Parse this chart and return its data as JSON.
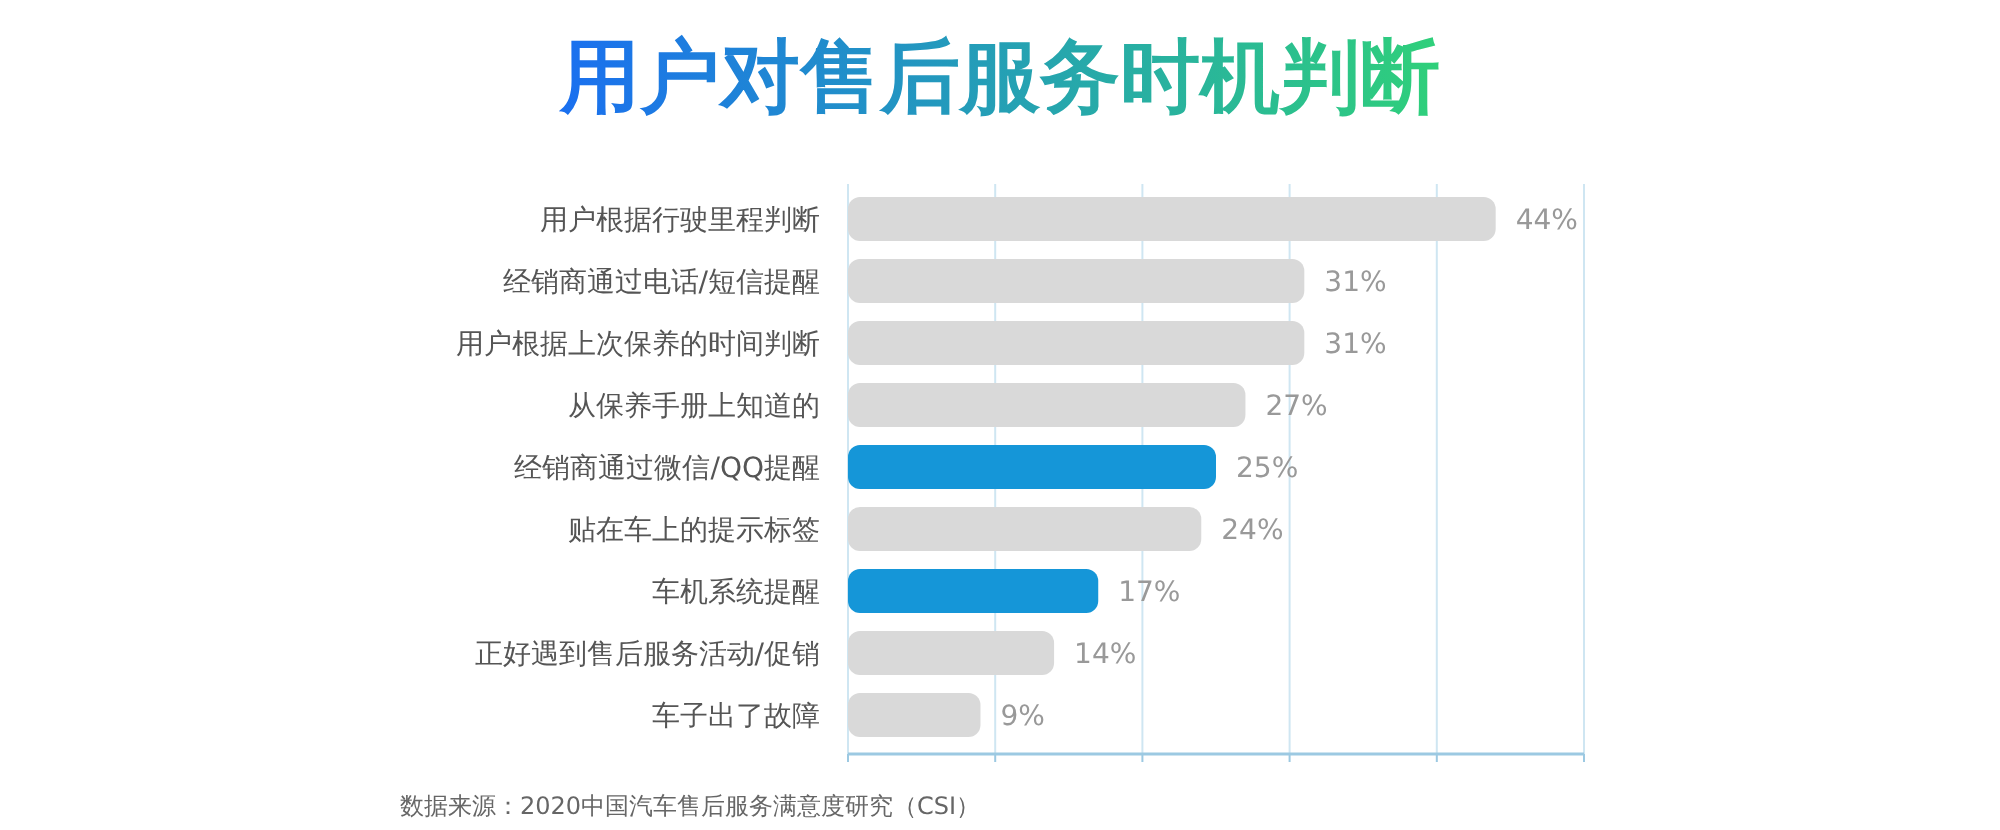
{
  "chart_data": {
    "type": "bar",
    "orientation": "horizontal",
    "title": "用户对售后服务时机判断",
    "categories": [
      "用户根据行驶里程判断",
      "经销商通过电话/短信提醒",
      "用户根据上次保养的时间判断",
      "从保养手册上知道的",
      "经销商通过微信/QQ提醒",
      "贴在车上的提示标签",
      "车机系统提醒",
      "正好遇到售后服务活动/促销",
      "车子出了故障"
    ],
    "values": [
      44,
      31,
      31,
      27,
      25,
      24,
      17,
      14,
      9
    ],
    "colors": [
      "#d9d9d9",
      "#d9d9d9",
      "#d9d9d9",
      "#d9d9d9",
      "#1596d8",
      "#d9d9d9",
      "#1596d8",
      "#d9d9d9",
      "#d9d9d9"
    ],
    "value_labels": [
      "44%",
      "31%",
      "31%",
      "27%",
      "25%",
      "24%",
      "17%",
      "14%",
      "9%"
    ],
    "xlim": [
      0,
      50
    ],
    "xticks": [
      {
        "value": 0,
        "label": null
      },
      {
        "value": 10,
        "label": null
      },
      {
        "value": 20,
        "label": null
      },
      {
        "value": 30,
        "label": null
      },
      {
        "value": 40,
        "label": null
      },
      {
        "value": 50,
        "label": null
      }
    ],
    "grid": "x",
    "tick_labels": "y",
    "annotations": [
      "数据来源：2020中国汽车售后服务满意度研究（CSI）"
    ]
  }
}
